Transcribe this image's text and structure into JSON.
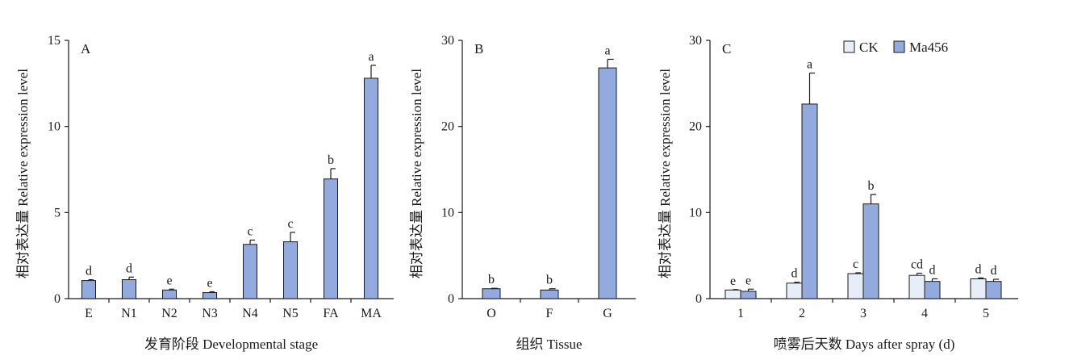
{
  "colors": {
    "bar_fill": "#92aadd",
    "ck_fill": "#e8eef8",
    "stroke": "#1a1a1a"
  },
  "chart_data": [
    {
      "type": "bar",
      "panel_label": "A",
      "categories": [
        "E",
        "N1",
        "N2",
        "N3",
        "N4",
        "N5",
        "FA",
        "MA"
      ],
      "values": [
        1.05,
        1.1,
        0.5,
        0.35,
        3.15,
        3.3,
        6.95,
        12.8
      ],
      "errors": [
        0.05,
        0.15,
        0.05,
        0.05,
        0.25,
        0.55,
        0.6,
        0.75
      ],
      "significance": [
        "d",
        "d",
        "e",
        "e",
        "c",
        "c",
        "b",
        "a"
      ],
      "xlabel": "发育阶段 Developmental stage",
      "ylabel": "相对表达量 Relative expression level",
      "ylim": [
        0,
        15
      ],
      "yticks": [
        0,
        5,
        10,
        15
      ]
    },
    {
      "type": "bar",
      "panel_label": "B",
      "categories": [
        "O",
        "F",
        "G"
      ],
      "values": [
        1.15,
        1.0,
        26.8
      ],
      "errors": [
        0.05,
        0.15,
        1.0
      ],
      "significance": [
        "b",
        "b",
        "a"
      ],
      "xlabel": "组织 Tissue",
      "ylabel": "相对表达量 Relative expression level",
      "ylim": [
        0,
        30
      ],
      "yticks": [
        0,
        10,
        20,
        30
      ]
    },
    {
      "type": "bar",
      "panel_label": "C",
      "categories": [
        "1",
        "2",
        "3",
        "4",
        "5"
      ],
      "series": [
        {
          "name": "CK",
          "values": [
            1.0,
            1.8,
            2.9,
            2.7,
            2.3
          ],
          "errors": [
            0.05,
            0.1,
            0.1,
            0.25,
            0.1
          ],
          "significance": [
            "e",
            "d",
            "c",
            "cd",
            "d"
          ]
        },
        {
          "name": "Ma456",
          "values": [
            0.85,
            22.6,
            11.0,
            2.0,
            2.0
          ],
          "errors": [
            0.25,
            3.6,
            1.1,
            0.3,
            0.25
          ],
          "significance": [
            "e",
            "a",
            "b",
            "d",
            "d"
          ]
        }
      ],
      "xlabel": "喷雾后天数 Days after spray (d)",
      "ylabel": "相对表达量 Relative expression level",
      "ylim": [
        0,
        30
      ],
      "yticks": [
        0,
        10,
        20,
        30
      ],
      "legend": "top-right"
    }
  ]
}
